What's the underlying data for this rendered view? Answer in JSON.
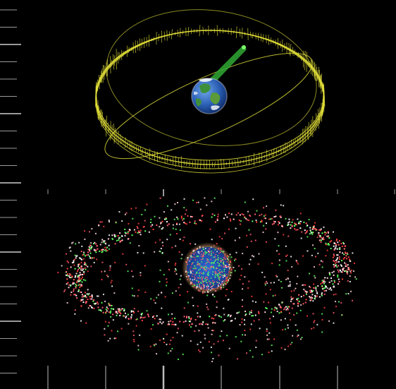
{
  "scene": {
    "background": "#000000",
    "ring_color": "#e4e23a",
    "beam_color": "#2fa834",
    "debris_colors": [
      "#ff5a6e",
      "#ffffff",
      "#5cff5c",
      "#ff3d3d",
      "#ffd7dc"
    ],
    "earth_ocean": "#2d62b8",
    "earth_land": "#3e8f3a",
    "earth_cloud": "#ffffff",
    "tick_color": "#9a9a9a",
    "panels": [
      {
        "name": "geostationary-ring-view",
        "subject": "earth-with-satellite-ring-icon"
      },
      {
        "name": "orbital-debris-view",
        "subject": "earth-with-debris-cloud-icon"
      }
    ]
  }
}
